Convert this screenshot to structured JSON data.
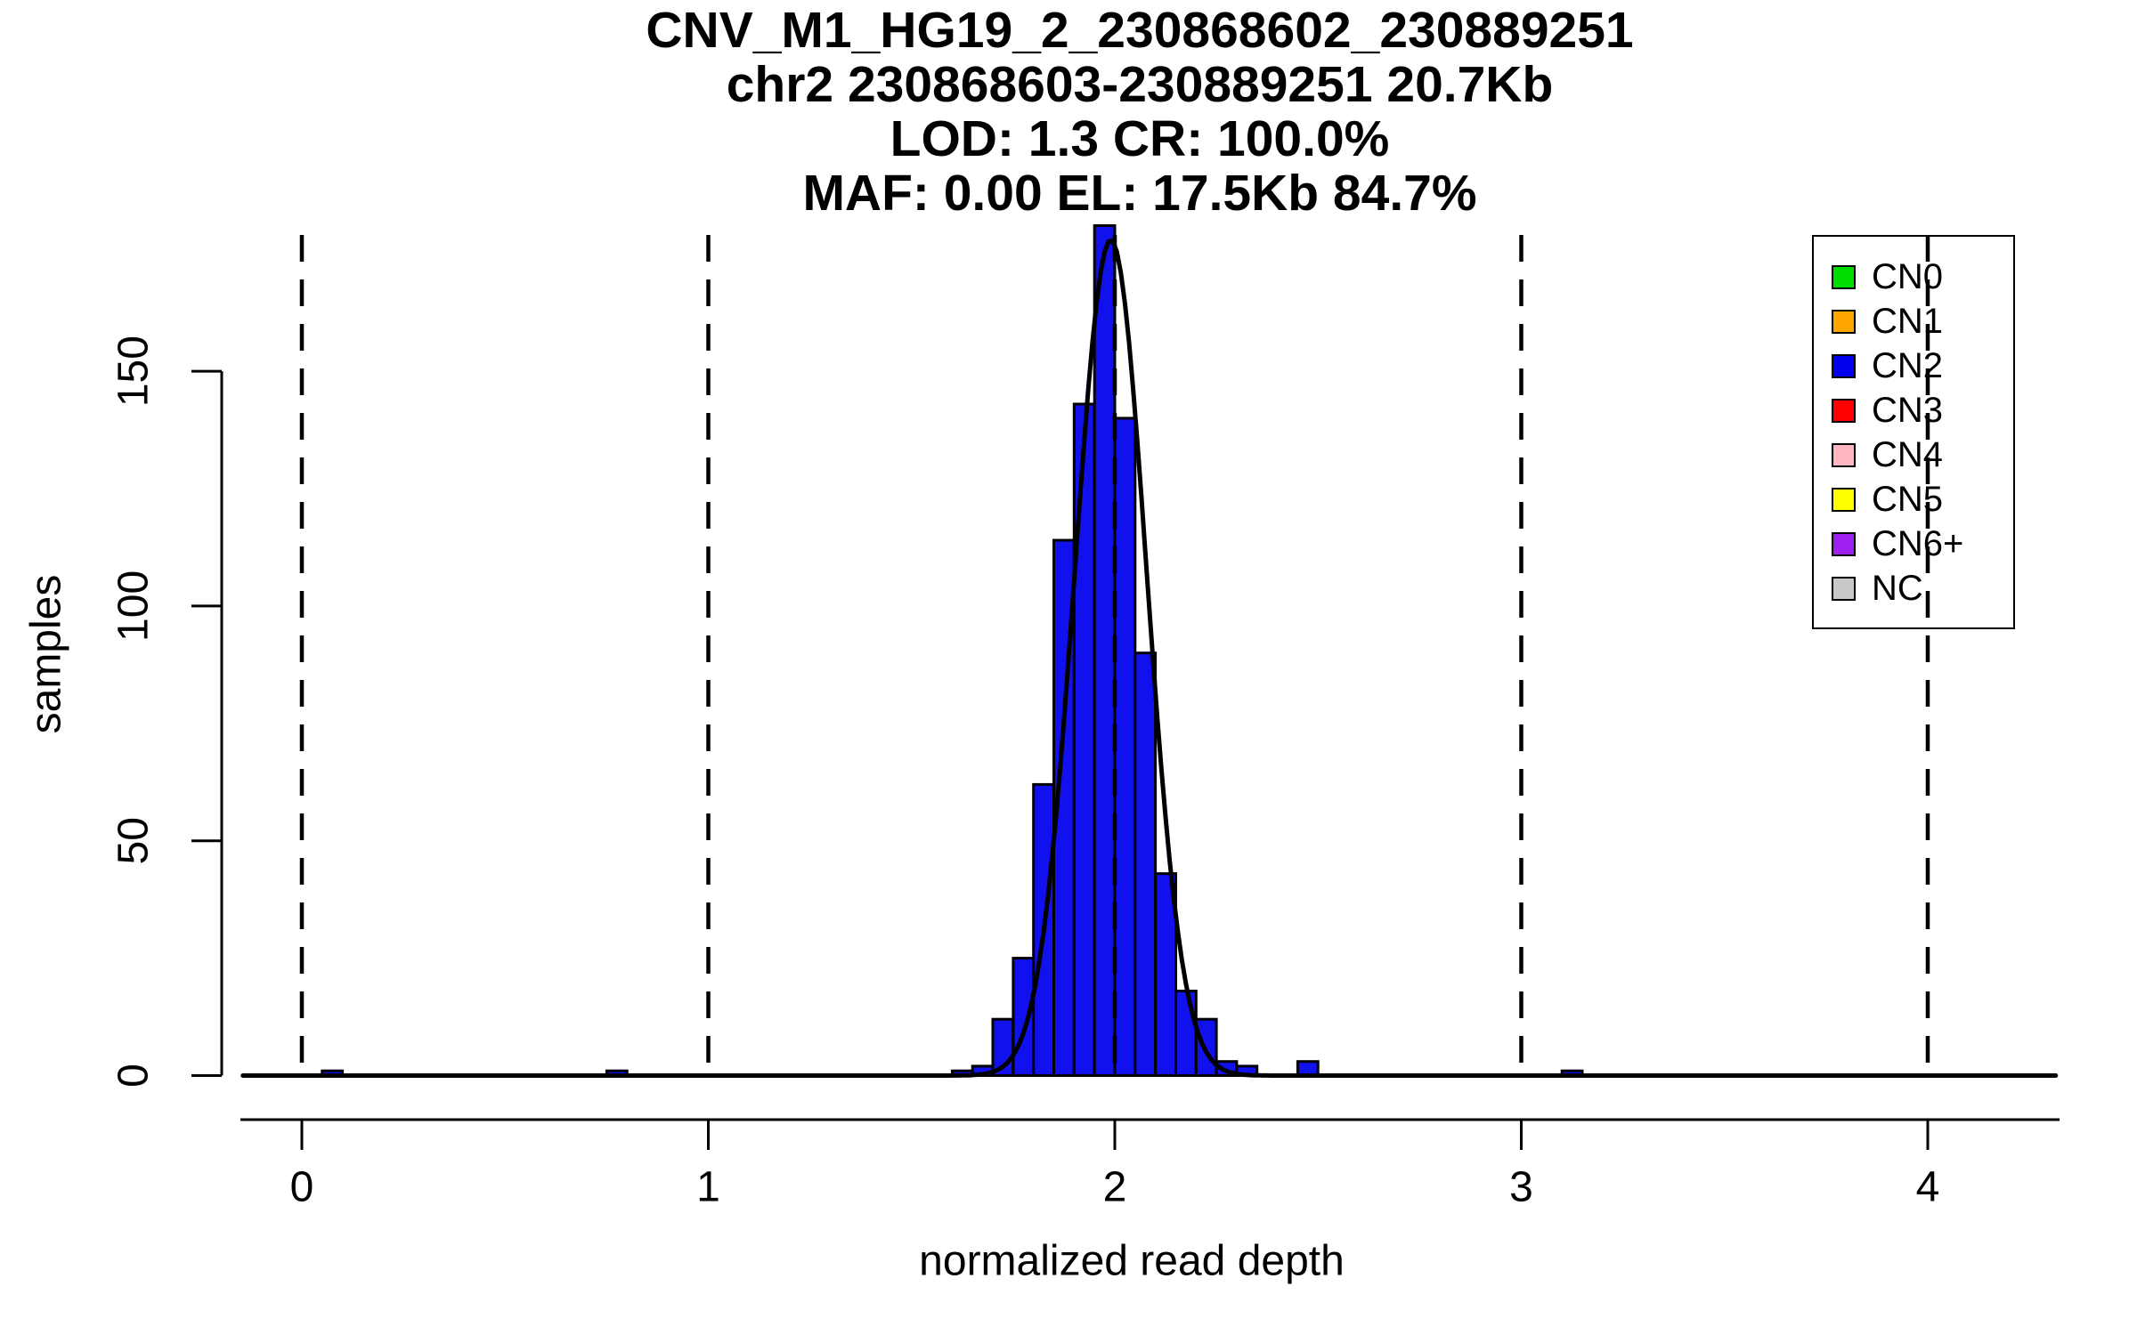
{
  "page": {
    "background": "#FFFFFF"
  },
  "chart_data": {
    "type": "histogram",
    "title_lines": [
      "CNV_M1_HG19_2_230868602_230889251",
      "chr2 230868603-230889251 20.7Kb",
      "LOD: 1.3 CR: 100.0%",
      "MAF: 0.00 EL: 17.5Kb 84.7%"
    ],
    "xlabel": "normalized read depth",
    "ylabel": "samples",
    "x_ticks": [
      0,
      1,
      2,
      3,
      4
    ],
    "y_ticks": [
      0,
      50,
      100,
      150
    ],
    "xlim": [
      -0.145,
      4.32
    ],
    "ylim": [
      0,
      179
    ],
    "grid": false,
    "bin_width": 0.05,
    "bar_color": "#1111EE",
    "bar_edge_color": "#000000",
    "bars": [
      {
        "x": 0.05,
        "count": 1
      },
      {
        "x": 0.75,
        "count": 1
      },
      {
        "x": 1.6,
        "count": 1
      },
      {
        "x": 1.65,
        "count": 2
      },
      {
        "x": 1.7,
        "count": 12
      },
      {
        "x": 1.75,
        "count": 25
      },
      {
        "x": 1.8,
        "count": 62
      },
      {
        "x": 1.85,
        "count": 114
      },
      {
        "x": 1.9,
        "count": 143
      },
      {
        "x": 1.95,
        "count": 181
      },
      {
        "x": 2.0,
        "count": 140
      },
      {
        "x": 2.05,
        "count": 90
      },
      {
        "x": 2.1,
        "count": 43
      },
      {
        "x": 2.15,
        "count": 18
      },
      {
        "x": 2.2,
        "count": 12
      },
      {
        "x": 2.25,
        "count": 3
      },
      {
        "x": 2.3,
        "count": 2
      },
      {
        "x": 2.45,
        "count": 3
      },
      {
        "x": 3.1,
        "count": 1
      }
    ],
    "curve": {
      "type": "gaussian",
      "mean": 1.99,
      "sd": 0.088,
      "peak": 178,
      "color": "#000000"
    },
    "dashed_lines_x": [
      0,
      1,
      2,
      3,
      4
    ],
    "legend": {
      "position": "top-right",
      "items": [
        {
          "label": "CN0",
          "color": "#00DD00"
        },
        {
          "label": "CN1",
          "color": "#FFA500"
        },
        {
          "label": "CN2",
          "color": "#0000EE"
        },
        {
          "label": "CN3",
          "color": "#FF0000"
        },
        {
          "label": "CN4",
          "color": "#FFB6C1"
        },
        {
          "label": "CN5",
          "color": "#FFFF00"
        },
        {
          "label": "CN6+",
          "color": "#A020F0"
        },
        {
          "label": "NC",
          "color": "#C8C8C8"
        }
      ]
    }
  }
}
